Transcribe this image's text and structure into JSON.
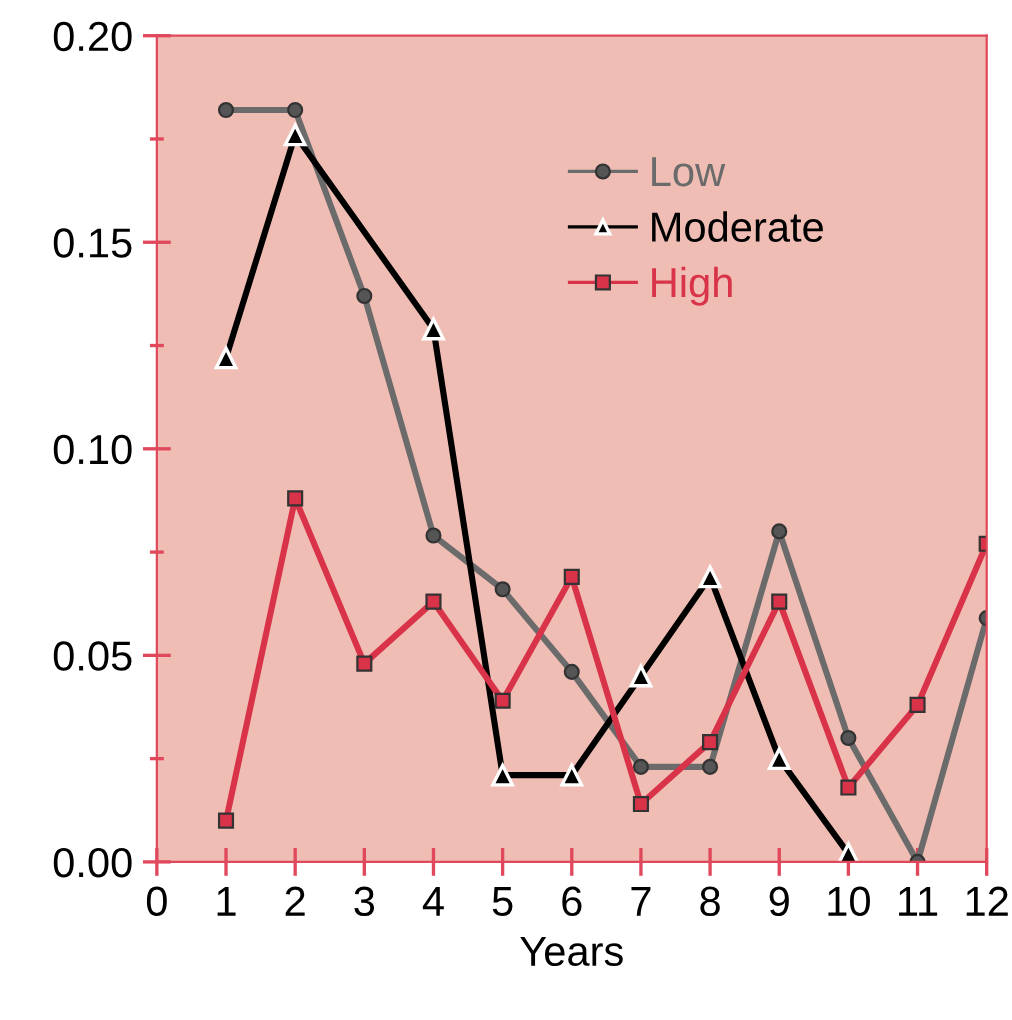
{
  "chart_data": {
    "type": "line",
    "xlabel": "Years",
    "x": [
      1,
      2,
      3,
      4,
      5,
      6,
      7,
      8,
      9,
      10,
      11,
      12
    ],
    "series": [
      {
        "name": "Low",
        "color": "#6b6b6b",
        "marker": "circle",
        "values": [
          0.182,
          0.182,
          0.137,
          0.079,
          0.066,
          0.046,
          0.023,
          0.023,
          0.08,
          0.03,
          0.0,
          0.059
        ]
      },
      {
        "name": "Moderate",
        "color": "#000000",
        "marker": "triangle",
        "values": [
          0.122,
          0.176,
          null,
          0.129,
          0.021,
          0.021,
          0.045,
          0.069,
          0.025,
          0.002,
          null,
          null
        ]
      },
      {
        "name": "High",
        "color": "#d9334a",
        "marker": "square",
        "values": [
          0.01,
          0.088,
          0.048,
          0.063,
          0.039,
          0.069,
          0.014,
          0.029,
          0.063,
          0.018,
          0.038,
          0.077
        ]
      }
    ],
    "xlim": [
      0,
      12
    ],
    "xticks": [
      0,
      1,
      2,
      3,
      4,
      5,
      6,
      7,
      8,
      9,
      10,
      11,
      12
    ],
    "ylim": [
      0,
      0.2
    ],
    "yticks": [
      {
        "value": 0,
        "label": "0.00"
      },
      {
        "value": 0.025,
        "label": null
      },
      {
        "value": 0.05,
        "label": "0.05"
      },
      {
        "value": 0.075,
        "label": null
      },
      {
        "value": 0.1,
        "label": "0.10"
      },
      {
        "value": 0.125,
        "label": null
      },
      {
        "value": 0.15,
        "label": "0.15"
      },
      {
        "value": 0.175,
        "label": null
      },
      {
        "value": 0.2,
        "label": "0.20"
      }
    ],
    "grid": false,
    "legend": "top right",
    "line_style": "solid"
  }
}
